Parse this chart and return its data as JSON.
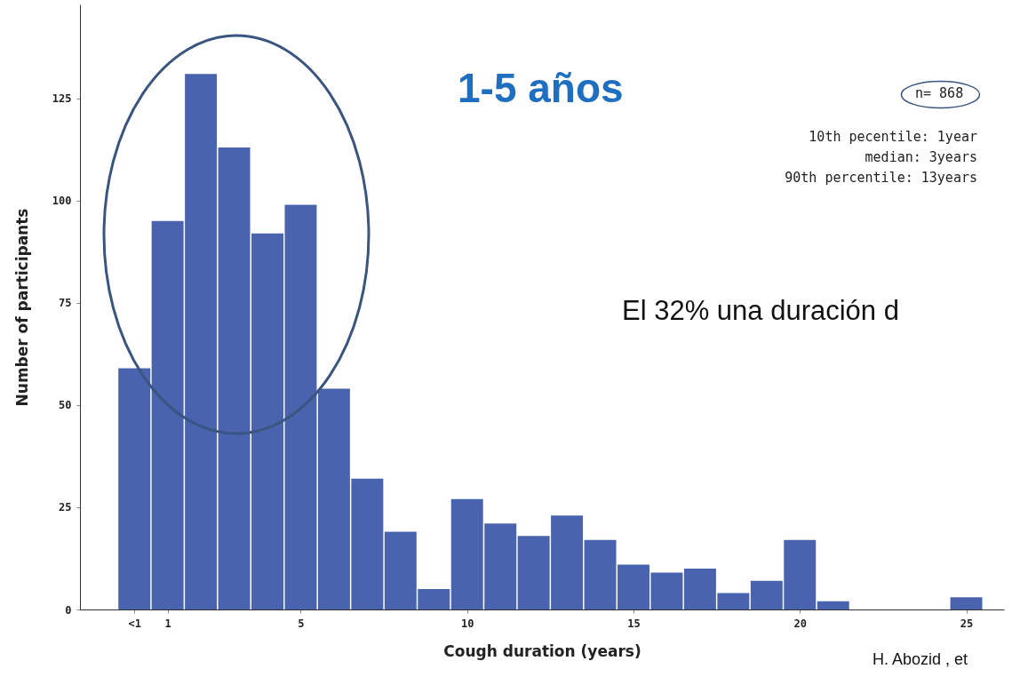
{
  "chart_data": {
    "type": "bar",
    "xlabel": "Cough duration (years)",
    "ylabel": "Number of participants",
    "color": "#4a63ae",
    "x": [
      0,
      1,
      2,
      3,
      4,
      5,
      6,
      7,
      8,
      9,
      10,
      11,
      12,
      13,
      14,
      15,
      16,
      17,
      18,
      19,
      20,
      21,
      22,
      23,
      24,
      25
    ],
    "values": [
      59,
      95,
      131,
      113,
      92,
      99,
      54,
      32,
      19,
      5,
      27,
      21,
      18,
      23,
      17,
      11,
      9,
      10,
      4,
      7,
      17,
      2,
      0,
      0,
      0,
      3
    ],
    "xlim": [
      -1.5,
      26
    ],
    "xticks": [
      {
        "value": 0,
        "label": "<1"
      },
      1,
      5,
      10,
      15,
      20,
      25
    ],
    "ylim": [
      0,
      148
    ],
    "yticks": [
      0,
      25,
      50,
      75,
      100,
      125
    ],
    "grid": false,
    "annotations": [
      "1-5 años",
      "n= 868",
      "10th pecentile: 1year",
      "median: 3years",
      "90th percentile: 13years",
      "El 32% una duración d",
      "H. Abozid , et"
    ]
  }
}
